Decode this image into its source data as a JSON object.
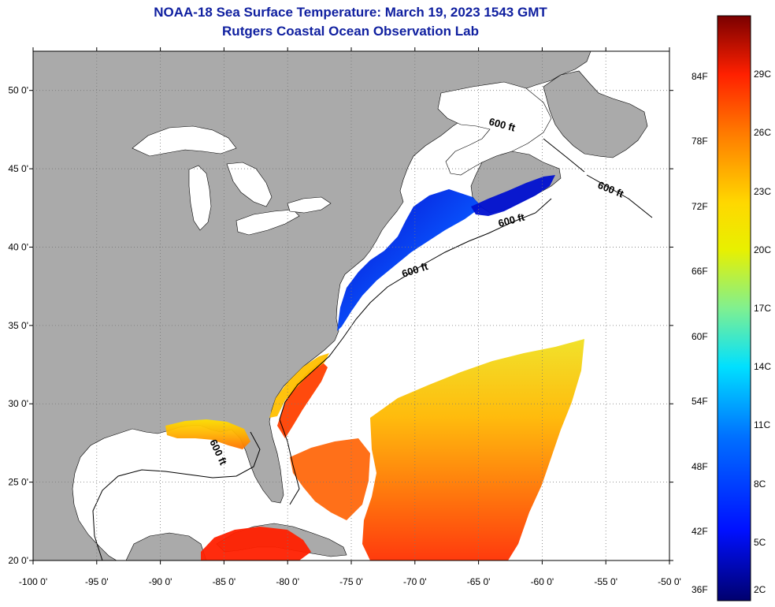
{
  "header": {
    "title": "NOAA-18 Sea Surface Temperature:  March 19, 2023 1543 GMT",
    "subtitle": "Rutgers Coastal Ocean Observation Lab"
  },
  "map": {
    "lon_range": [
      -100,
      -50
    ],
    "lat_range": [
      20,
      52.5
    ],
    "lon_ticks": [
      "-100 0'",
      "-95 0'",
      "-90 0'",
      "-85 0'",
      "-80 0'",
      "-75 0'",
      "-70 0'",
      "-65 0'",
      "-60 0'",
      "-55 0'",
      "-50 0'"
    ],
    "lat_ticks": [
      "20 0'",
      "25 0'",
      "30 0'",
      "35 0'",
      "40 0'",
      "45 0'",
      "50 0'"
    ],
    "contour_labels": [
      "600 ft",
      "600 ft",
      "600 ft",
      "600 ft",
      "600 ft"
    ],
    "colors": {
      "land": "#aaaaaa",
      "water": "#ffffff",
      "grid": "#777777"
    }
  },
  "colorbar": {
    "fahrenheit_labels": [
      "36F",
      "42F",
      "48F",
      "54F",
      "60F",
      "66F",
      "72F",
      "78F",
      "84F"
    ],
    "celsius_labels": [
      "2C",
      "5C",
      "8C",
      "11C",
      "14C",
      "17C",
      "20C",
      "23C",
      "26C",
      "29C"
    ],
    "colors": [
      "#00008b",
      "#0000ff",
      "#0080ff",
      "#00e0ff",
      "#60f0a0",
      "#e0f000",
      "#ffd000",
      "#ff8000",
      "#ff2000",
      "#8b0000"
    ]
  }
}
